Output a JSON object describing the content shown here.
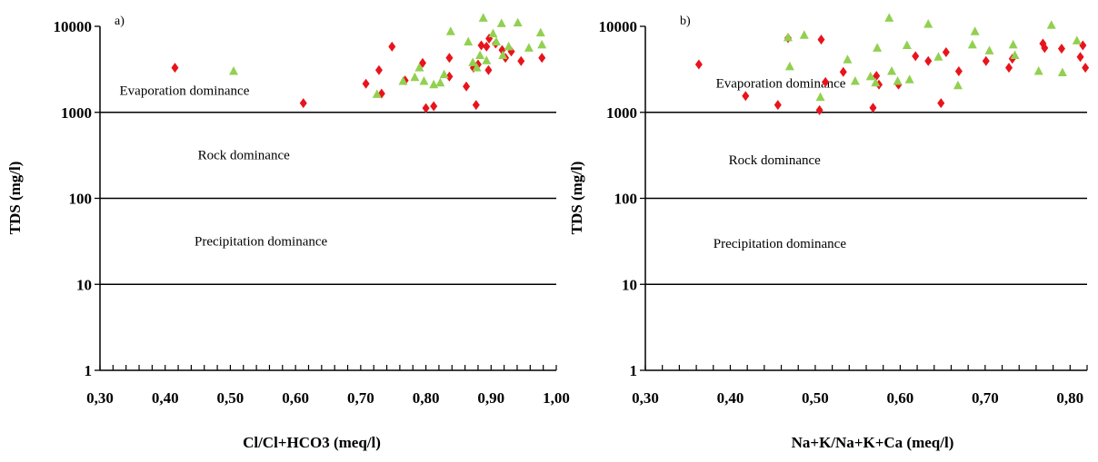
{
  "chart_data": [
    {
      "type": "scatter",
      "panel_label": "a)",
      "xlabel": "Cl/Cl+HCO3 (meq/l)",
      "ylabel": "TDS (mg/l)",
      "xlim": [
        0.3,
        1.0
      ],
      "ylim": [
        1,
        10000
      ],
      "yscale": "log",
      "x_tick_labels": [
        "0,30",
        "0,40",
        "0,50",
        "0,60",
        "0,70",
        "0,80",
        "0,90",
        "1,00"
      ],
      "y_tick_labels": [
        "1",
        "10",
        "100",
        "1000",
        "10000"
      ],
      "boundaries": [
        1000,
        100,
        10
      ],
      "regions": [
        {
          "label": "Evaporation dominance",
          "x": 0.33,
          "y": 1800
        },
        {
          "label": "Rock dominance",
          "x": 0.45,
          "y": 320
        },
        {
          "label": "Precipitation dominance",
          "x": 0.445,
          "y": 32
        }
      ],
      "grid": false,
      "series": [
        {
          "marker": "diamond",
          "color": "#e8141c",
          "points": [
            [
              0.415,
              3300
            ],
            [
              0.612,
              1280
            ],
            [
              0.708,
              2150
            ],
            [
              0.728,
              3100
            ],
            [
              0.732,
              1650
            ],
            [
              0.748,
              5800
            ],
            [
              0.768,
              2350
            ],
            [
              0.795,
              3750
            ],
            [
              0.8,
              1120
            ],
            [
              0.812,
              1180
            ],
            [
              0.836,
              4300
            ],
            [
              0.836,
              2600
            ],
            [
              0.862,
              2000
            ],
            [
              0.873,
              3300
            ],
            [
              0.877,
              1220
            ],
            [
              0.88,
              3600
            ],
            [
              0.885,
              6000
            ],
            [
              0.893,
              5800
            ],
            [
              0.896,
              3100
            ],
            [
              0.897,
              7200
            ],
            [
              0.907,
              6300
            ],
            [
              0.917,
              5300
            ],
            [
              0.922,
              4300
            ],
            [
              0.931,
              5100
            ],
            [
              0.946,
              3950
            ],
            [
              0.978,
              4300
            ]
          ]
        },
        {
          "marker": "triangle",
          "color": "#92d050",
          "points": [
            [
              0.505,
              3000
            ],
            [
              0.725,
              1620
            ],
            [
              0.765,
              2300
            ],
            [
              0.783,
              2550
            ],
            [
              0.79,
              3300
            ],
            [
              0.797,
              2300
            ],
            [
              0.812,
              2100
            ],
            [
              0.822,
              2200
            ],
            [
              0.828,
              2750
            ],
            [
              0.838,
              8700
            ],
            [
              0.865,
              6600
            ],
            [
              0.872,
              3800
            ],
            [
              0.878,
              3300
            ],
            [
              0.883,
              4600
            ],
            [
              0.888,
              12500
            ],
            [
              0.893,
              4000
            ],
            [
              0.903,
              8200
            ],
            [
              0.908,
              6600
            ],
            [
              0.916,
              10800
            ],
            [
              0.927,
              5800
            ],
            [
              0.941,
              11000
            ],
            [
              0.958,
              5600
            ],
            [
              0.976,
              8400
            ],
            [
              0.978,
              6100
            ],
            [
              0.918,
              4600
            ]
          ]
        }
      ]
    },
    {
      "type": "scatter",
      "panel_label": "b)",
      "xlabel": "Na+K/Na+K+Ca (meq/l)",
      "ylabel": "TDS (mg/l)",
      "xlim": [
        0.3,
        0.82
      ],
      "ylim": [
        1,
        10000
      ],
      "yscale": "log",
      "x_tick_labels": [
        "0,30",
        "0,40",
        "0,50",
        "0,60",
        "0,70",
        "0,80"
      ],
      "y_tick_labels": [
        "1",
        "10",
        "100",
        "1000",
        "10000"
      ],
      "boundaries": [
        1000,
        100,
        10
      ],
      "regions": [
        {
          "label": "Evaporation dominance",
          "x": 0.383,
          "y": 2200
        },
        {
          "label": "Rock dominance",
          "x": 0.398,
          "y": 280
        },
        {
          "label": "Precipitation dominance",
          "x": 0.38,
          "y": 30
        }
      ],
      "grid": false,
      "series": [
        {
          "marker": "diamond",
          "color": "#e8141c",
          "points": [
            [
              0.363,
              3600
            ],
            [
              0.418,
              1550
            ],
            [
              0.456,
              1220
            ],
            [
              0.468,
              7300
            ],
            [
              0.505,
              1060
            ],
            [
              0.507,
              7000
            ],
            [
              0.512,
              2250
            ],
            [
              0.533,
              2950
            ],
            [
              0.568,
              1130
            ],
            [
              0.572,
              2650
            ],
            [
              0.575,
              2100
            ],
            [
              0.598,
              2100
            ],
            [
              0.618,
              4500
            ],
            [
              0.633,
              3950
            ],
            [
              0.648,
              1280
            ],
            [
              0.654,
              5000
            ],
            [
              0.669,
              3000
            ],
            [
              0.701,
              3950
            ],
            [
              0.728,
              3300
            ],
            [
              0.732,
              4200
            ],
            [
              0.768,
              6300
            ],
            [
              0.77,
              5600
            ],
            [
              0.79,
              5500
            ],
            [
              0.812,
              4400
            ],
            [
              0.815,
              6000
            ],
            [
              0.818,
              3300
            ]
          ]
        },
        {
          "marker": "triangle",
          "color": "#92d050",
          "points": [
            [
              0.468,
              7400
            ],
            [
              0.47,
              3400
            ],
            [
              0.487,
              7900
            ],
            [
              0.506,
              1500
            ],
            [
              0.538,
              4100
            ],
            [
              0.547,
              2300
            ],
            [
              0.565,
              2600
            ],
            [
              0.571,
              2200
            ],
            [
              0.573,
              5600
            ],
            [
              0.587,
              12500
            ],
            [
              0.59,
              3000
            ],
            [
              0.597,
              2300
            ],
            [
              0.608,
              6000
            ],
            [
              0.611,
              2400
            ],
            [
              0.633,
              10600
            ],
            [
              0.645,
              4400
            ],
            [
              0.668,
              2050
            ],
            [
              0.685,
              6100
            ],
            [
              0.688,
              8700
            ],
            [
              0.705,
              5200
            ],
            [
              0.733,
              6100
            ],
            [
              0.735,
              4600
            ],
            [
              0.763,
              3000
            ],
            [
              0.778,
              10300
            ],
            [
              0.791,
              2900
            ],
            [
              0.808,
              6800
            ]
          ]
        }
      ]
    }
  ]
}
